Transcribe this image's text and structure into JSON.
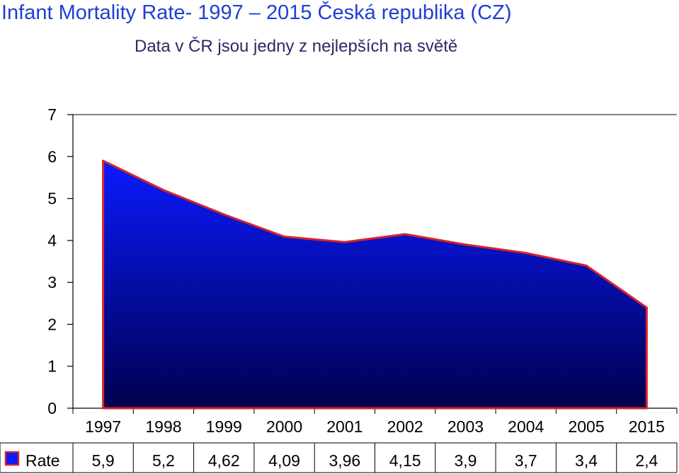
{
  "title": "Infant Mortality Rate- 1997 – 2015 Česká republika (CZ)",
  "subtitle": "Data v ČR jsou jedny z nejlepších na světě",
  "colors": {
    "title": "#1f3fd0",
    "area_top": "#0a1aff",
    "area_bottom": "#00004d",
    "line": "#d4232b",
    "axis": "#000000"
  },
  "chart_data": {
    "type": "area",
    "categories": [
      "1997",
      "1998",
      "1999",
      "2000",
      "2001",
      "2002",
      "2003",
      "2004",
      "2005",
      "2015"
    ],
    "series": [
      {
        "name": "Rate",
        "values": [
          5.9,
          5.2,
          4.62,
          4.09,
          3.96,
          4.15,
          3.9,
          3.7,
          3.4,
          2.4
        ]
      }
    ],
    "value_labels": [
      "5,9",
      "5,2",
      "4,62",
      "4,09",
      "3,96",
      "4,15",
      "3,9",
      "3,7",
      "3,4",
      "2,4"
    ],
    "yticks": [
      "0",
      "1",
      "2",
      "3",
      "4",
      "5",
      "6",
      "7"
    ],
    "ylim": [
      0,
      7
    ],
    "legend": "data table below chart",
    "grid": false
  }
}
